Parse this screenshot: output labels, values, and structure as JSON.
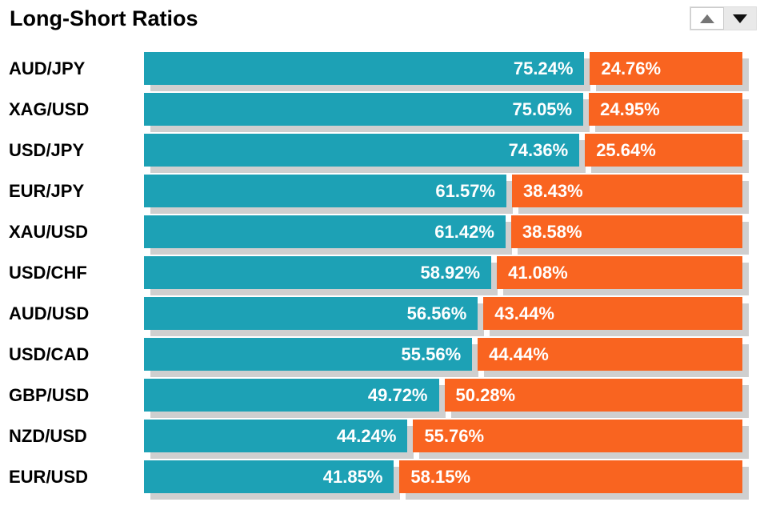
{
  "header": {
    "title": "Long-Short Ratios",
    "sort": {
      "up_icon": "triangle-up",
      "down_icon": "triangle-down",
      "active": "up"
    }
  },
  "colors": {
    "long": "#1da1b5",
    "short": "#f96420",
    "shadow": "#cfcfcf",
    "bar_text": "#ffffff",
    "label_text": "#000000"
  },
  "chart_data": {
    "type": "bar",
    "orientation": "horizontal",
    "stacked": true,
    "title": "Long-Short Ratios",
    "value_format": "percent",
    "value_labels_shown": true,
    "legend": "none",
    "axes": "none",
    "categories": [
      "AUD/JPY",
      "XAG/USD",
      "USD/JPY",
      "EUR/JPY",
      "XAU/USD",
      "USD/CHF",
      "AUD/USD",
      "USD/CAD",
      "GBP/USD",
      "NZD/USD",
      "EUR/USD"
    ],
    "series": [
      {
        "name": "Long",
        "color": "#1da1b5",
        "values": [
          75.24,
          75.05,
          74.36,
          61.57,
          61.42,
          58.92,
          56.56,
          55.56,
          49.72,
          44.24,
          41.85
        ],
        "labels": [
          "75.24%",
          "75.05%",
          "74.36%",
          "61.57%",
          "61.42%",
          "58.92%",
          "56.56%",
          "55.56%",
          "49.72%",
          "44.24%",
          "41.85%"
        ]
      },
      {
        "name": "Short",
        "color": "#f96420",
        "values": [
          24.76,
          24.95,
          25.64,
          38.43,
          38.58,
          41.08,
          43.44,
          44.44,
          50.28,
          55.76,
          58.15
        ],
        "labels": [
          "24.76%",
          "24.95%",
          "25.64%",
          "38.43%",
          "38.58%",
          "41.08%",
          "43.44%",
          "44.44%",
          "50.28%",
          "55.76%",
          "58.15%"
        ]
      }
    ]
  }
}
